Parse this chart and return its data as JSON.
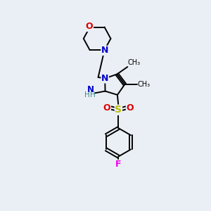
{
  "bg_color": "#eaeff5",
  "atom_colors": {
    "C": "#000000",
    "N": "#0000cc",
    "O": "#dd0000",
    "S": "#bbbb00",
    "F": "#ee00ee",
    "H": "#3a8a8a"
  },
  "figsize": [
    3.0,
    3.0
  ],
  "dpi": 100
}
